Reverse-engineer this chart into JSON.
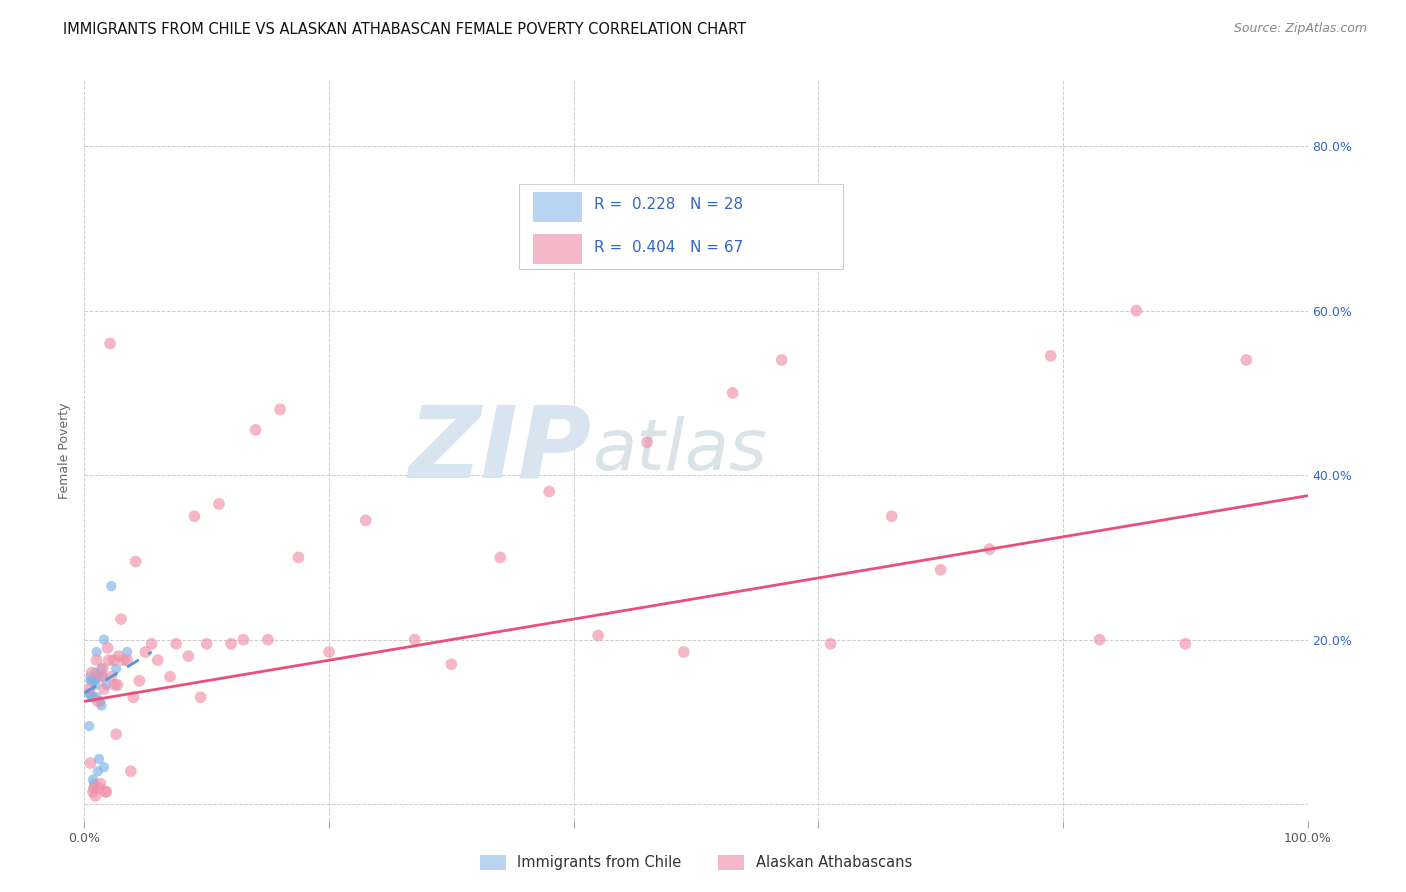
{
  "title": "IMMIGRANTS FROM CHILE VS ALASKAN ATHABASCAN FEMALE POVERTY CORRELATION CHART",
  "source": "Source: ZipAtlas.com",
  "ylabel": "Female Poverty",
  "xlim": [
    0,
    1.0
  ],
  "ylim": [
    -0.02,
    0.88
  ],
  "legend_entries": [
    {
      "label": "R =  0.228   N = 28",
      "color": "#b8d4f0"
    },
    {
      "label": "R =  0.404   N = 67",
      "color": "#f5b8c8"
    }
  ],
  "legend_bottom": [
    "Immigrants from Chile",
    "Alaskan Athabascans"
  ],
  "legend_bottom_colors": [
    "#b8d4f0",
    "#f5b8c8"
  ],
  "watermark_zip": "ZIP",
  "watermark_atlas": "atlas",
  "blue_scatter_x": [
    0.003,
    0.004,
    0.005,
    0.005,
    0.005,
    0.006,
    0.006,
    0.007,
    0.007,
    0.008,
    0.008,
    0.009,
    0.009,
    0.01,
    0.01,
    0.011,
    0.011,
    0.012,
    0.013,
    0.014,
    0.014,
    0.015,
    0.016,
    0.016,
    0.018,
    0.022,
    0.026,
    0.035
  ],
  "blue_scatter_y": [
    0.135,
    0.095,
    0.135,
    0.15,
    0.155,
    0.13,
    0.15,
    0.13,
    0.03,
    0.025,
    0.15,
    0.145,
    0.16,
    0.13,
    0.185,
    0.155,
    0.04,
    0.055,
    0.125,
    0.12,
    0.165,
    0.155,
    0.045,
    0.2,
    0.145,
    0.265,
    0.165,
    0.185
  ],
  "pink_scatter_x": [
    0.004,
    0.005,
    0.006,
    0.007,
    0.008,
    0.009,
    0.01,
    0.011,
    0.012,
    0.013,
    0.014,
    0.015,
    0.016,
    0.017,
    0.018,
    0.019,
    0.02,
    0.021,
    0.022,
    0.024,
    0.025,
    0.026,
    0.027,
    0.028,
    0.03,
    0.032,
    0.035,
    0.038,
    0.04,
    0.042,
    0.045,
    0.05,
    0.055,
    0.06,
    0.07,
    0.075,
    0.085,
    0.09,
    0.095,
    0.1,
    0.11,
    0.12,
    0.13,
    0.14,
    0.15,
    0.16,
    0.175,
    0.2,
    0.23,
    0.27,
    0.3,
    0.34,
    0.38,
    0.42,
    0.46,
    0.49,
    0.53,
    0.57,
    0.61,
    0.66,
    0.7,
    0.74,
    0.79,
    0.83,
    0.86,
    0.9,
    0.95
  ],
  "pink_scatter_y": [
    0.14,
    0.05,
    0.16,
    0.015,
    0.02,
    0.01,
    0.175,
    0.125,
    0.02,
    0.025,
    0.155,
    0.165,
    0.14,
    0.015,
    0.015,
    0.19,
    0.175,
    0.56,
    0.155,
    0.175,
    0.145,
    0.085,
    0.145,
    0.18,
    0.225,
    0.175,
    0.175,
    0.04,
    0.13,
    0.295,
    0.15,
    0.185,
    0.195,
    0.175,
    0.155,
    0.195,
    0.18,
    0.35,
    0.13,
    0.195,
    0.365,
    0.195,
    0.2,
    0.455,
    0.2,
    0.48,
    0.3,
    0.185,
    0.345,
    0.2,
    0.17,
    0.3,
    0.38,
    0.205,
    0.44,
    0.185,
    0.5,
    0.54,
    0.195,
    0.35,
    0.285,
    0.31,
    0.545,
    0.2,
    0.6,
    0.195,
    0.54
  ],
  "blue_line_x": [
    0.0,
    0.055
  ],
  "blue_line_y": [
    0.135,
    0.185
  ],
  "pink_line_x": [
    0.0,
    1.0
  ],
  "pink_line_y": [
    0.125,
    0.375
  ],
  "title_fontsize": 10.5,
  "axis_label_fontsize": 9,
  "tick_fontsize": 9,
  "source_fontsize": 9,
  "scatter_size": 55,
  "scatter_alpha": 0.65,
  "blue_scatter_color": "#7ab3e8",
  "pink_scatter_color": "#f090a8",
  "blue_line_color": "#5599dd",
  "pink_line_color": "#e8507a",
  "grid_color": "#cccccc",
  "background_color": "#ffffff",
  "text_color_blue": "#3366cc",
  "text_color_dark": "#333333"
}
